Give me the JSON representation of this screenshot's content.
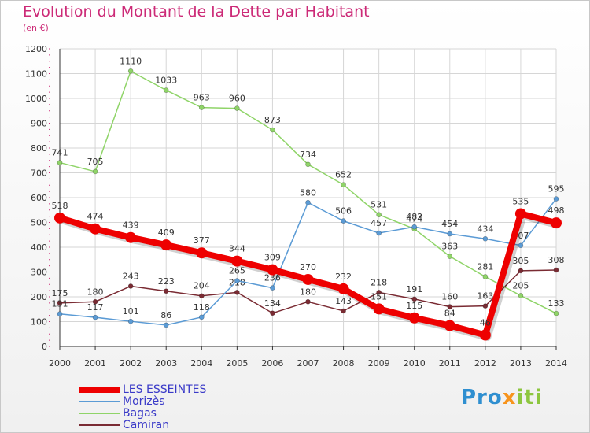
{
  "title": "Evolution du Montant de la Dette par Habitant",
  "subtitle": "(en €)",
  "brand": {
    "p1": "Pro",
    "p2": "x",
    "p3": "iti"
  },
  "chart_data": {
    "type": "line",
    "title": "Evolution du Montant de la Dette par Habitant",
    "subtitle": "(en €)",
    "xlabel": "",
    "ylabel": "",
    "x": [
      "2000",
      "2001",
      "2002",
      "2003",
      "2004",
      "2005",
      "2006",
      "2007",
      "2008",
      "2009",
      "2010",
      "2011",
      "2012",
      "2013",
      "2014"
    ],
    "ylim": [
      0,
      1200
    ],
    "yticks": [
      0,
      100,
      200,
      300,
      400,
      500,
      600,
      700,
      800,
      900,
      1000,
      1100,
      1200
    ],
    "grid": true,
    "legend": "bottom-left",
    "series": [
      {
        "name": "LES ESSEINTES",
        "color": "#ee0000",
        "values": [
          518,
          474,
          439,
          409,
          377,
          344,
          309,
          270,
          232,
          151,
          115,
          84,
          46,
          535,
          498
        ]
      },
      {
        "name": "Morizès",
        "color": "#5b9bd5",
        "values": [
          131,
          117,
          101,
          86,
          118,
          265,
          236,
          580,
          506,
          457,
          482,
          454,
          434,
          407,
          595
        ]
      },
      {
        "name": "Bagas",
        "color": "#8fd468",
        "values": [
          741,
          705,
          1110,
          1033,
          963,
          960,
          873,
          734,
          652,
          531,
          474,
          363,
          281,
          205,
          133
        ]
      },
      {
        "name": "Camiran",
        "color": "#7a2b33",
        "values": [
          175,
          180,
          243,
          223,
          204,
          218,
          134,
          180,
          143,
          218,
          191,
          160,
          163,
          305,
          308
        ]
      }
    ]
  }
}
